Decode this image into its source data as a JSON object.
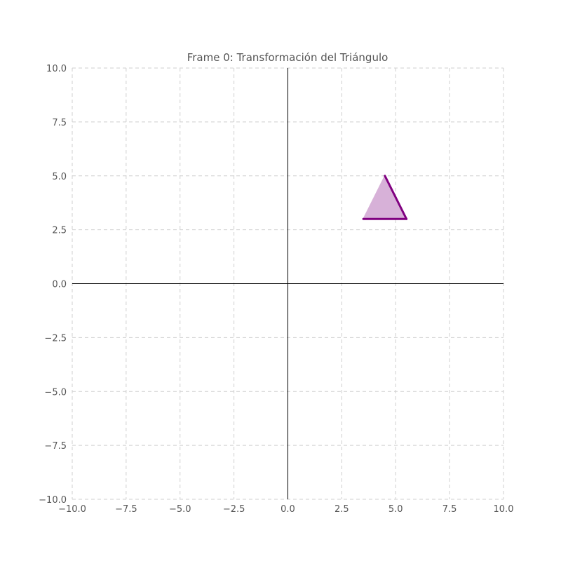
{
  "chart_data": {
    "type": "scatter",
    "title": "Frame 0: Transformación del Triángulo",
    "xlabel": "",
    "ylabel": "",
    "xlim": [
      -10,
      10
    ],
    "ylim": [
      -10,
      10
    ],
    "grid": true,
    "grid_style": "dashed",
    "x_ticks": [
      -10.0,
      -7.5,
      -5.0,
      -2.5,
      0.0,
      2.5,
      5.0,
      7.5,
      10.0
    ],
    "y_ticks": [
      -10.0,
      -7.5,
      -5.0,
      -2.5,
      0.0,
      2.5,
      5.0,
      7.5,
      10.0
    ],
    "x_tick_labels": [
      "−10.0",
      "−7.5",
      "−5.0",
      "−2.5",
      "0.0",
      "2.5",
      "5.0",
      "7.5",
      "10.0"
    ],
    "y_tick_labels": [
      "−10.0",
      "−7.5",
      "−5.0",
      "−2.5",
      "0.0",
      "2.5",
      "5.0",
      "7.5",
      "10.0"
    ],
    "axis_lines_at_zero": true,
    "triangle": {
      "vertices": [
        [
          3.5,
          3.0
        ],
        [
          4.5,
          5.0
        ],
        [
          5.5,
          3.0
        ]
      ],
      "fill_color": "#d7b1d8",
      "edge_color": "#800080"
    }
  }
}
